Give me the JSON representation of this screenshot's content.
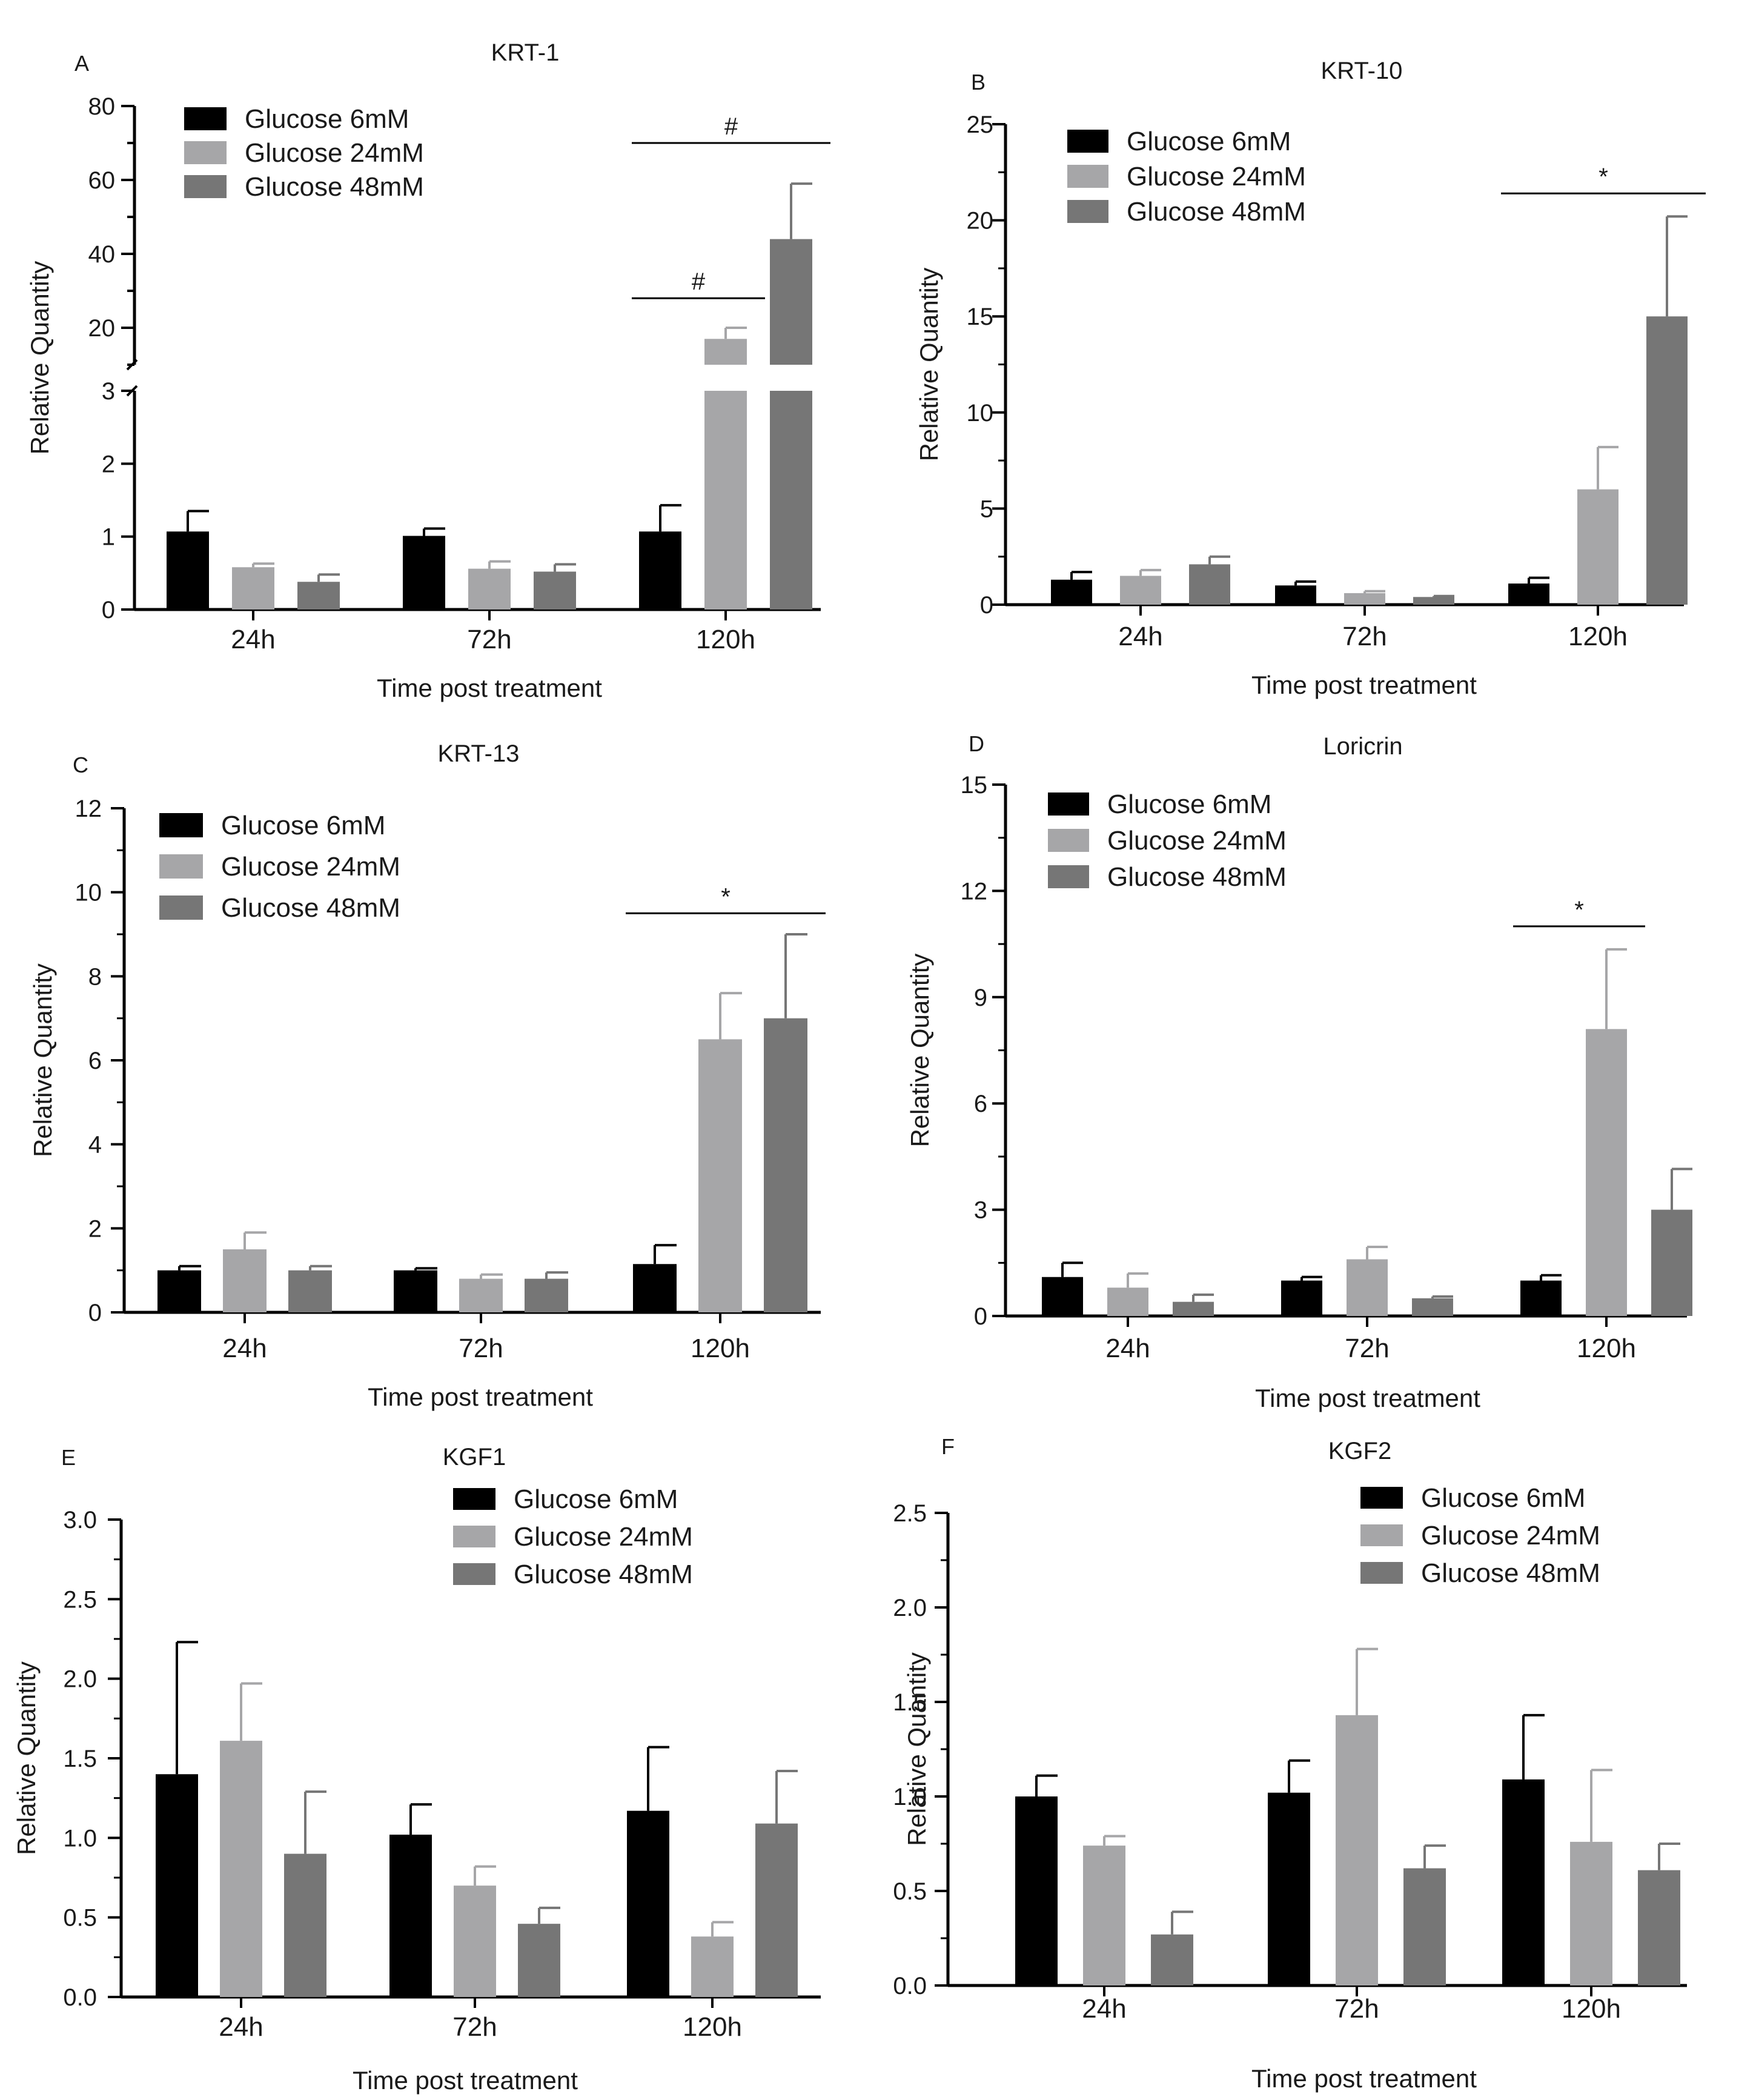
{
  "colors": {
    "glucose_6mM": "#000000",
    "glucose_24mM": "#a6a6a8",
    "glucose_48mM": "#767676",
    "axis": "#000000"
  },
  "legend": [
    "Glucose 6mM",
    "Glucose 24mM",
    "Glucose 48mM"
  ],
  "chart_data": [
    {
      "panel": "A",
      "type": "bar",
      "title": "KRT-1",
      "xlabel": "Time post treatment",
      "ylabel": "Relative Quantity",
      "categories": [
        "24h",
        "72h",
        "120h"
      ],
      "axis_break": true,
      "ylim_lower": [
        0,
        3
      ],
      "ylim_upper": [
        10,
        80
      ],
      "yticks_lower": [
        "0",
        "1",
        "2",
        "3"
      ],
      "yticks_upper": [
        "20",
        "40",
        "60",
        "80"
      ],
      "series": [
        {
          "name": "Glucose 6mM",
          "values": [
            1.07,
            1.01,
            1.07
          ],
          "errors": [
            0.28,
            0.1,
            0.36
          ]
        },
        {
          "name": "Glucose 24mM",
          "values": [
            0.58,
            0.56,
            17.0
          ],
          "errors": [
            0.05,
            0.1,
            3.0
          ]
        },
        {
          "name": "Glucose 48mM",
          "values": [
            0.38,
            0.52,
            44.0
          ],
          "errors": [
            0.1,
            0.1,
            15.0
          ]
        }
      ],
      "significance": [
        {
          "label": "#",
          "from": [
            2,
            0
          ],
          "to": [
            2,
            1
          ],
          "y": 28
        },
        {
          "label": "#",
          "from": [
            2,
            0
          ],
          "to": [
            2,
            2
          ],
          "y": 70
        }
      ]
    },
    {
      "panel": "B",
      "type": "bar",
      "title": "KRT-10",
      "xlabel": "Time post treatment",
      "ylabel": "Relative Quantity",
      "categories": [
        "24h",
        "72h",
        "120h"
      ],
      "ylim": [
        0,
        25
      ],
      "yticks": [
        "0",
        "5",
        "10",
        "15",
        "20",
        "25"
      ],
      "series": [
        {
          "name": "Glucose 6mM",
          "values": [
            1.3,
            1.0,
            1.1
          ],
          "errors": [
            0.4,
            0.2,
            0.3
          ]
        },
        {
          "name": "Glucose 24mM",
          "values": [
            1.5,
            0.6,
            6.0
          ],
          "errors": [
            0.3,
            0.1,
            2.2
          ]
        },
        {
          "name": "Glucose 48mM",
          "values": [
            2.1,
            0.4,
            15.0
          ],
          "errors": [
            0.4,
            0.05,
            5.2
          ]
        }
      ],
      "significance": [
        {
          "label": "*",
          "from": [
            2,
            0
          ],
          "to": [
            2,
            2
          ],
          "y": 21.4
        }
      ]
    },
    {
      "panel": "C",
      "type": "bar",
      "title": "KRT-13",
      "xlabel": "Time post treatment",
      "ylabel": "Relative Quantity",
      "categories": [
        "24h",
        "72h",
        "120h"
      ],
      "ylim": [
        0,
        12
      ],
      "yticks": [
        "0",
        "2",
        "4",
        "6",
        "8",
        "10",
        "12"
      ],
      "series": [
        {
          "name": "Glucose 6mM",
          "values": [
            1.0,
            1.0,
            1.15
          ],
          "errors": [
            0.1,
            0.05,
            0.45
          ]
        },
        {
          "name": "Glucose 24mM",
          "values": [
            1.5,
            0.8,
            6.5
          ],
          "errors": [
            0.4,
            0.1,
            1.1
          ]
        },
        {
          "name": "Glucose 48mM",
          "values": [
            1.0,
            0.8,
            7.0
          ],
          "errors": [
            0.1,
            0.15,
            2.0
          ]
        }
      ],
      "significance": [
        {
          "label": "*",
          "from": [
            2,
            0
          ],
          "to": [
            2,
            2
          ],
          "y": 9.5
        }
      ]
    },
    {
      "panel": "D",
      "type": "bar",
      "title": "Loricrin",
      "xlabel": "Time post treatment",
      "ylabel": "Relative Quantity",
      "categories": [
        "24h",
        "72h",
        "120h"
      ],
      "ylim": [
        0,
        15
      ],
      "yticks": [
        "0",
        "3",
        "6",
        "9",
        "12",
        "15"
      ],
      "series": [
        {
          "name": "Glucose 6mM",
          "values": [
            1.1,
            1.0,
            1.0
          ],
          "errors": [
            0.4,
            0.1,
            0.15
          ]
        },
        {
          "name": "Glucose 24mM",
          "values": [
            0.8,
            1.6,
            8.1
          ],
          "errors": [
            0.4,
            0.35,
            2.25
          ]
        },
        {
          "name": "Glucose 48mM",
          "values": [
            0.4,
            0.5,
            3.0
          ],
          "errors": [
            0.2,
            0.05,
            1.15
          ]
        }
      ],
      "significance": [
        {
          "label": "*",
          "from": [
            2,
            0
          ],
          "to": [
            2,
            1
          ],
          "y": 11.0
        }
      ]
    },
    {
      "panel": "E",
      "type": "bar",
      "title": "KGF1",
      "xlabel": "Time post treatment",
      "ylabel": "Relative Quantity",
      "categories": [
        "24h",
        "72h",
        "120h"
      ],
      "ylim": [
        0,
        3
      ],
      "yticks": [
        "0.0",
        "0.5",
        "1.0",
        "1.5",
        "2.0",
        "2.5",
        "3.0"
      ],
      "series": [
        {
          "name": "Glucose 6mM",
          "values": [
            1.4,
            1.02,
            1.17
          ],
          "errors": [
            0.83,
            0.19,
            0.4
          ]
        },
        {
          "name": "Glucose 24mM",
          "values": [
            1.61,
            0.7,
            0.38
          ],
          "errors": [
            0.36,
            0.12,
            0.09
          ]
        },
        {
          "name": "Glucose 48mM",
          "values": [
            0.9,
            0.46,
            1.09
          ],
          "errors": [
            0.39,
            0.1,
            0.33
          ]
        }
      ],
      "significance": []
    },
    {
      "panel": "F",
      "type": "bar",
      "title": "KGF2",
      "xlabel": "Time post treatment",
      "ylabel": "Relative Quantity",
      "categories": [
        "24h",
        "72h",
        "120h"
      ],
      "ylim": [
        0,
        2.5
      ],
      "yticks": [
        "0.0",
        "0.5",
        "1.0",
        "1.5",
        "2.0",
        "2.5"
      ],
      "series": [
        {
          "name": "Glucose 6mM",
          "values": [
            1.0,
            1.02,
            1.09
          ],
          "errors": [
            0.11,
            0.17,
            0.34
          ]
        },
        {
          "name": "Glucose 24mM",
          "values": [
            0.74,
            1.43,
            0.76
          ],
          "errors": [
            0.05,
            0.35,
            0.38
          ]
        },
        {
          "name": "Glucose 48mM",
          "values": [
            0.27,
            0.62,
            0.61
          ],
          "errors": [
            0.12,
            0.12,
            0.14
          ]
        }
      ],
      "significance": []
    }
  ]
}
